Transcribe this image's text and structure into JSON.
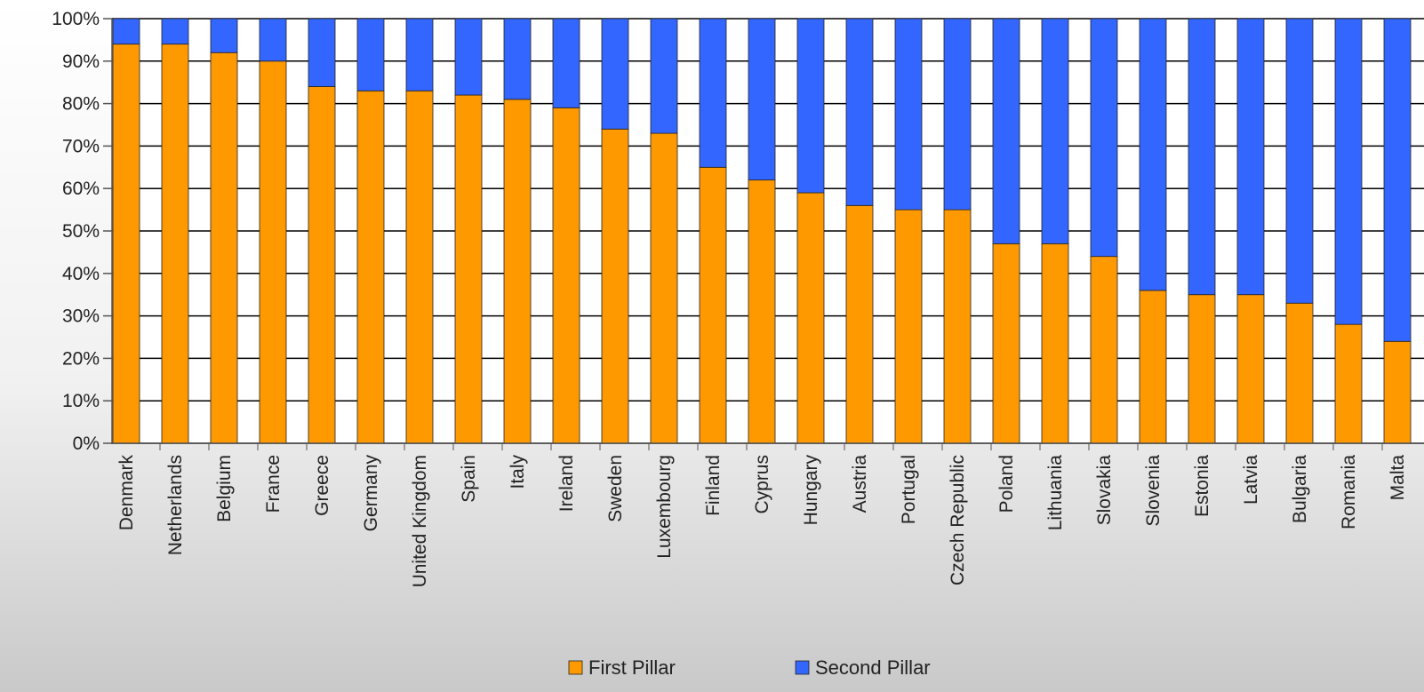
{
  "chart_data": {
    "type": "bar",
    "stacked": true,
    "title": "",
    "xlabel": "",
    "ylabel": "",
    "ylim": [
      0,
      100
    ],
    "y_ticks": [
      "0%",
      "10%",
      "20%",
      "30%",
      "40%",
      "50%",
      "60%",
      "70%",
      "80%",
      "90%",
      "100%"
    ],
    "grid": true,
    "legend_position": "bottom",
    "categories": [
      "Denmark",
      "Netherlands",
      "Belgium",
      "France",
      "Greece",
      "Germany",
      "United Kingdom",
      "Spain",
      "Italy",
      "Ireland",
      "Sweden",
      "Luxembourg",
      "Finland",
      "Cyprus",
      "Hungary",
      "Austria",
      "Portugal",
      "Czech Republic",
      "Poland",
      "Lithuania",
      "Slovakia",
      "Slovenia",
      "Estonia",
      "Latvia",
      "Bulgaria",
      "Romania",
      "Malta"
    ],
    "series": [
      {
        "name": "First Pillar",
        "color": "#ff9900",
        "values": [
          94,
          94,
          92,
          90,
          84,
          83,
          83,
          82,
          81,
          79,
          74,
          73,
          65,
          62,
          59,
          56,
          55,
          55,
          47,
          47,
          44,
          36,
          35,
          35,
          33,
          28,
          24
        ]
      },
      {
        "name": "Second Pillar",
        "color": "#3366ff",
        "values": [
          6,
          6,
          8,
          10,
          16,
          17,
          17,
          18,
          19,
          21,
          26,
          27,
          35,
          38,
          41,
          44,
          45,
          45,
          53,
          53,
          56,
          64,
          65,
          65,
          67,
          72,
          76
        ]
      }
    ]
  }
}
